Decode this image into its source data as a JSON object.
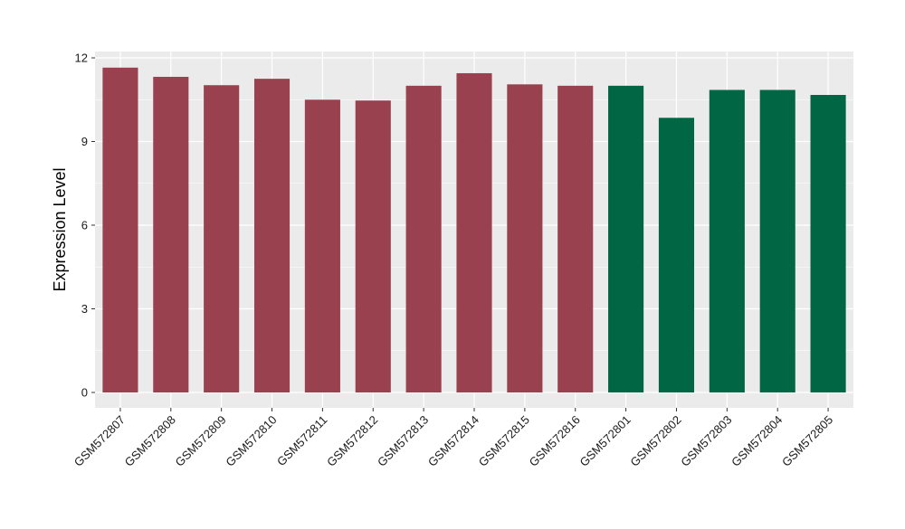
{
  "chart_data": {
    "type": "bar",
    "title": "",
    "xlabel": "",
    "ylabel": "Expression Level",
    "ylim": [
      0,
      12
    ],
    "yticks": [
      0,
      3,
      6,
      9,
      12
    ],
    "grid": true,
    "legend": "none",
    "colors": {
      "group_a": "#9a4150",
      "group_b": "#006644",
      "panel": "#ebebeb",
      "gridline": "#ffffff"
    },
    "categories": [
      "GSM572807",
      "GSM572808",
      "GSM572809",
      "GSM572810",
      "GSM572811",
      "GSM572812",
      "GSM572813",
      "GSM572814",
      "GSM572815",
      "GSM572816",
      "GSM572801",
      "GSM572802",
      "GSM572803",
      "GSM572804",
      "GSM572805"
    ],
    "values": [
      11.65,
      11.32,
      11.02,
      11.25,
      10.5,
      10.47,
      11.0,
      11.45,
      11.05,
      11.0,
      11.0,
      9.85,
      10.85,
      10.85,
      10.67
    ],
    "groups": [
      "a",
      "a",
      "a",
      "a",
      "a",
      "a",
      "a",
      "a",
      "a",
      "a",
      "b",
      "b",
      "b",
      "b",
      "b"
    ]
  }
}
